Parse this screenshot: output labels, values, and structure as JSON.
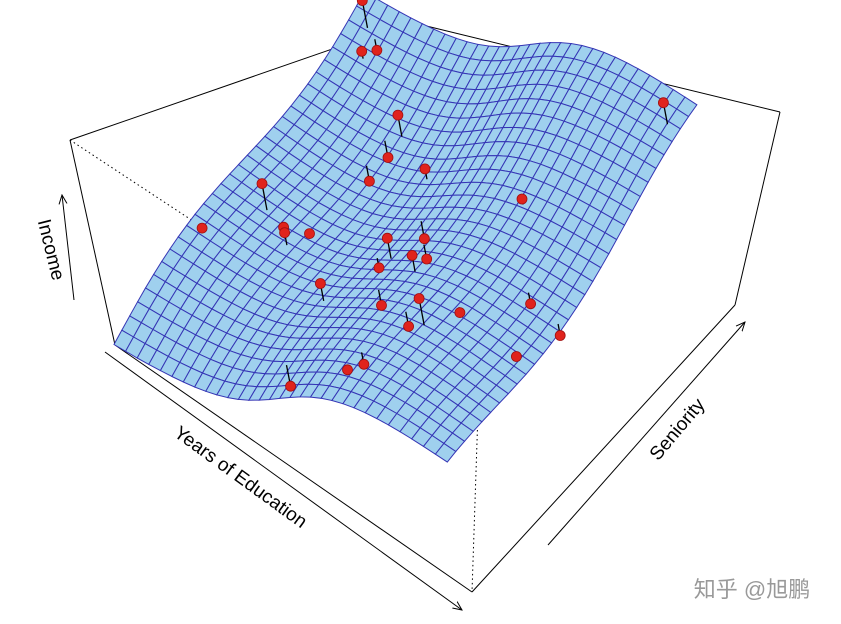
{
  "chart_data": {
    "type": "surface",
    "xlabel": "Years of Education",
    "ylabel": "Seniority",
    "zlabel": "Income"
  },
  "watermark": "知乎 @旭鹏"
}
